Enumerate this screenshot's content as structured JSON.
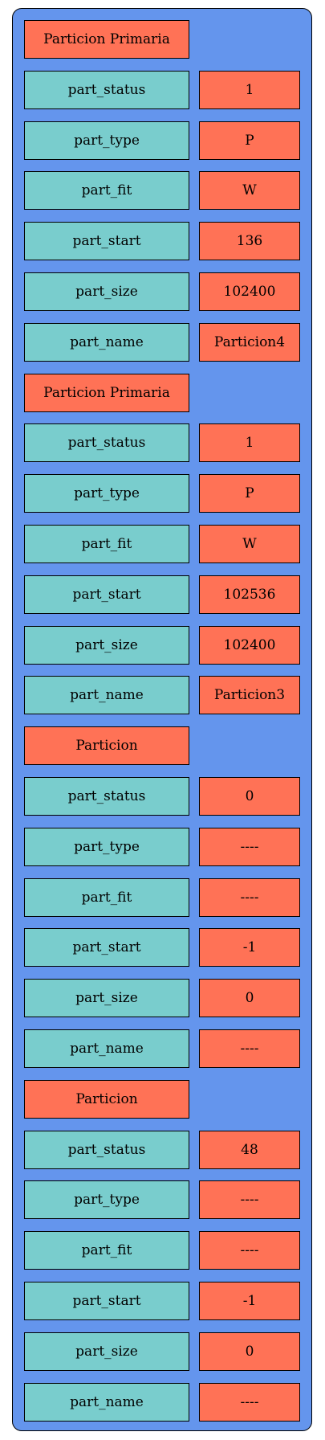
{
  "colors": {
    "panel": "#6495ED",
    "header": "#FF7256",
    "key": "#79CDCD",
    "value": "#FF7256"
  },
  "sections": [
    {
      "title": "Particion Primaria",
      "fields": [
        {
          "key": "part_status",
          "value": "1"
        },
        {
          "key": "part_type",
          "value": "P"
        },
        {
          "key": "part_fit",
          "value": "W"
        },
        {
          "key": "part_start",
          "value": "136"
        },
        {
          "key": "part_size",
          "value": "102400"
        },
        {
          "key": "part_name",
          "value": "Particion4"
        }
      ]
    },
    {
      "title": "Particion Primaria",
      "fields": [
        {
          "key": "part_status",
          "value": "1"
        },
        {
          "key": "part_type",
          "value": "P"
        },
        {
          "key": "part_fit",
          "value": "W"
        },
        {
          "key": "part_start",
          "value": "102536"
        },
        {
          "key": "part_size",
          "value": "102400"
        },
        {
          "key": "part_name",
          "value": "Particion3"
        }
      ]
    },
    {
      "title": "Particion",
      "fields": [
        {
          "key": "part_status",
          "value": "0"
        },
        {
          "key": "part_type",
          "value": "----"
        },
        {
          "key": "part_fit",
          "value": "----"
        },
        {
          "key": "part_start",
          "value": "-1"
        },
        {
          "key": "part_size",
          "value": "0"
        },
        {
          "key": "part_name",
          "value": "----"
        }
      ]
    },
    {
      "title": "Particion",
      "fields": [
        {
          "key": "part_status",
          "value": "48"
        },
        {
          "key": "part_type",
          "value": "----"
        },
        {
          "key": "part_fit",
          "value": "----"
        },
        {
          "key": "part_start",
          "value": "-1"
        },
        {
          "key": "part_size",
          "value": "0"
        },
        {
          "key": "part_name",
          "value": "----"
        }
      ]
    }
  ]
}
